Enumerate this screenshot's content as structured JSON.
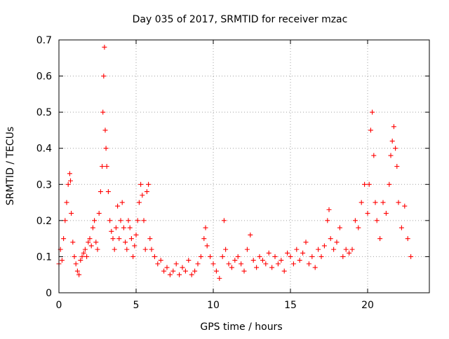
{
  "chart_data": {
    "type": "scatter",
    "title": "Day 035 of 2017, SRMTID for receiver mzac",
    "xlabel": "GPS time / hours",
    "ylabel": "SRMTID / TECUs",
    "xlim": [
      0,
      24
    ],
    "ylim": [
      0,
      0.7
    ],
    "xticks": [
      0,
      5,
      10,
      15,
      20
    ],
    "xtick_labels": [
      "0",
      "5",
      "10",
      "15",
      "20"
    ],
    "yticks": [
      0,
      0.1,
      0.2,
      0.3,
      0.4,
      0.5,
      0.6,
      0.7
    ],
    "ytick_labels": [
      "0",
      "0.1",
      "0.2",
      "0.3",
      "0.4",
      "0.5",
      "0.6",
      "0.7"
    ],
    "grid": true,
    "marker": "+",
    "color": "#ff0000",
    "series": [
      {
        "name": "SRMTID",
        "x": [
          0.0,
          0.1,
          0.2,
          0.3,
          0.4,
          0.5,
          0.6,
          0.7,
          0.75,
          0.8,
          0.9,
          1.0,
          1.1,
          1.2,
          1.3,
          1.4,
          1.5,
          1.6,
          1.7,
          1.8,
          1.9,
          2.0,
          2.1,
          2.2,
          2.3,
          2.4,
          2.5,
          2.6,
          2.7,
          2.8,
          2.85,
          2.9,
          2.95,
          3.0,
          3.05,
          3.1,
          3.2,
          3.3,
          3.4,
          3.5,
          3.6,
          3.7,
          3.8,
          3.9,
          4.0,
          4.1,
          4.2,
          4.3,
          4.4,
          4.5,
          4.6,
          4.7,
          4.8,
          4.9,
          5.0,
          5.1,
          5.2,
          5.3,
          5.4,
          5.5,
          5.6,
          5.7,
          5.8,
          5.9,
          6.0,
          6.2,
          6.4,
          6.6,
          6.8,
          7.0,
          7.2,
          7.4,
          7.6,
          7.8,
          8.0,
          8.2,
          8.4,
          8.6,
          8.8,
          9.0,
          9.2,
          9.4,
          9.5,
          9.6,
          9.8,
          10.0,
          10.2,
          10.4,
          10.6,
          10.7,
          10.8,
          11.0,
          11.2,
          11.4,
          11.6,
          11.8,
          12.0,
          12.2,
          12.4,
          12.6,
          12.8,
          13.0,
          13.2,
          13.4,
          13.6,
          13.8,
          14.0,
          14.2,
          14.4,
          14.6,
          14.8,
          15.0,
          15.2,
          15.4,
          15.6,
          15.8,
          16.0,
          16.2,
          16.4,
          16.6,
          16.8,
          17.0,
          17.2,
          17.4,
          17.5,
          17.6,
          17.8,
          18.0,
          18.2,
          18.4,
          18.6,
          18.8,
          19.0,
          19.2,
          19.4,
          19.6,
          19.8,
          20.0,
          20.1,
          20.2,
          20.3,
          20.4,
          20.5,
          20.6,
          20.8,
          21.0,
          21.2,
          21.4,
          21.5,
          21.6,
          21.7,
          21.8,
          21.9,
          22.0,
          22.2,
          22.4,
          22.6,
          22.8
        ],
        "y": [
          0.08,
          0.12,
          0.09,
          0.15,
          0.2,
          0.25,
          0.3,
          0.33,
          0.31,
          0.22,
          0.14,
          0.1,
          0.08,
          0.06,
          0.05,
          0.09,
          0.1,
          0.11,
          0.12,
          0.1,
          0.14,
          0.15,
          0.13,
          0.18,
          0.2,
          0.14,
          0.12,
          0.22,
          0.28,
          0.35,
          0.5,
          0.6,
          0.68,
          0.45,
          0.4,
          0.35,
          0.28,
          0.2,
          0.17,
          0.15,
          0.12,
          0.18,
          0.24,
          0.15,
          0.2,
          0.25,
          0.18,
          0.14,
          0.12,
          0.2,
          0.18,
          0.15,
          0.1,
          0.13,
          0.16,
          0.2,
          0.25,
          0.3,
          0.27,
          0.2,
          0.12,
          0.28,
          0.3,
          0.15,
          0.12,
          0.1,
          0.08,
          0.09,
          0.06,
          0.07,
          0.05,
          0.06,
          0.08,
          0.05,
          0.07,
          0.06,
          0.09,
          0.05,
          0.06,
          0.08,
          0.1,
          0.15,
          0.18,
          0.13,
          0.1,
          0.08,
          0.06,
          0.04,
          0.1,
          0.2,
          0.12,
          0.08,
          0.07,
          0.09,
          0.1,
          0.08,
          0.06,
          0.12,
          0.16,
          0.09,
          0.07,
          0.1,
          0.09,
          0.08,
          0.11,
          0.07,
          0.1,
          0.08,
          0.09,
          0.06,
          0.11,
          0.1,
          0.08,
          0.12,
          0.09,
          0.11,
          0.14,
          0.08,
          0.1,
          0.07,
          0.12,
          0.1,
          0.13,
          0.2,
          0.23,
          0.15,
          0.12,
          0.14,
          0.18,
          0.1,
          0.12,
          0.11,
          0.12,
          0.2,
          0.18,
          0.25,
          0.3,
          0.22,
          0.3,
          0.45,
          0.5,
          0.38,
          0.25,
          0.2,
          0.15,
          0.25,
          0.22,
          0.3,
          0.38,
          0.42,
          0.46,
          0.4,
          0.35,
          0.25,
          0.18,
          0.24,
          0.15,
          0.1
        ]
      }
    ]
  },
  "page": {
    "background": "#ffffff",
    "axis_color": "#000000",
    "grid_color": "#a0a0a0"
  }
}
